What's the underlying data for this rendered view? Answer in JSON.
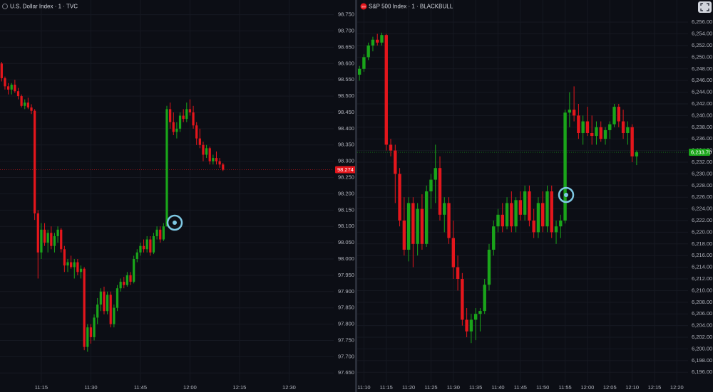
{
  "chart_data": [
    {
      "type": "candlestick",
      "title": "U.S. Dollar Index · 1 · TVC",
      "up_color": "#1aa51a",
      "down_color": "#e4161c",
      "xlim": [
        "11:03",
        "12:43"
      ],
      "xticks": [
        "11:15",
        "11:30",
        "11:45",
        "12:00",
        "12:15",
        "12:30"
      ],
      "ylim": [
        97.62,
        98.795
      ],
      "yticks": [
        {
          "value": 97.65,
          "label": "97.650"
        },
        {
          "value": 97.7,
          "label": "97.700"
        },
        {
          "value": 97.75,
          "label": "97.750"
        },
        {
          "value": 97.8,
          "label": "97.800"
        },
        {
          "value": 97.85,
          "label": "97.850"
        },
        {
          "value": 97.9,
          "label": "97.900"
        },
        {
          "value": 97.95,
          "label": "97.950"
        },
        {
          "value": 98.0,
          "label": "98.000"
        },
        {
          "value": 98.05,
          "label": "98.050"
        },
        {
          "value": 98.1,
          "label": "98.100"
        },
        {
          "value": 98.15,
          "label": "98.150"
        },
        {
          "value": 98.2,
          "label": "98.200"
        },
        {
          "value": 98.25,
          "label": "98.250"
        },
        {
          "value": 98.3,
          "label": "98.300"
        },
        {
          "value": 98.35,
          "label": "98.350"
        },
        {
          "value": 98.4,
          "label": "98.400"
        },
        {
          "value": 98.45,
          "label": "98.450"
        },
        {
          "value": 98.5,
          "label": "98.500"
        },
        {
          "value": 98.55,
          "label": "98.550"
        },
        {
          "value": 98.6,
          "label": "98.600"
        },
        {
          "value": 98.65,
          "label": "98.650"
        },
        {
          "value": 98.7,
          "label": "98.700"
        },
        {
          "value": 98.75,
          "label": "98.750"
        }
      ],
      "last_price": {
        "value": 98.274,
        "label": "98.274",
        "color": "#e4161c"
      },
      "x": [
        "11:03",
        "11:04",
        "11:05",
        "11:06",
        "11:07",
        "11:08",
        "11:09",
        "11:10",
        "11:11",
        "11:12",
        "11:13",
        "11:14",
        "11:15",
        "11:16",
        "11:17",
        "11:18",
        "11:19",
        "11:20",
        "11:21",
        "11:22",
        "11:23",
        "11:24",
        "11:25",
        "11:26",
        "11:27",
        "11:28",
        "11:29",
        "11:30",
        "11:31",
        "11:32",
        "11:33",
        "11:34",
        "11:35",
        "11:36",
        "11:37",
        "11:38",
        "11:39",
        "11:40",
        "11:41",
        "11:42",
        "11:43",
        "11:44",
        "11:45",
        "11:46",
        "11:47",
        "11:48",
        "11:49",
        "11:50",
        "11:51",
        "11:52",
        "11:53",
        "11:54",
        "11:55",
        "11:56",
        "11:57",
        "11:58",
        "11:59",
        "12:00",
        "12:01",
        "12:02",
        "12:03",
        "12:04",
        "12:05",
        "12:06",
        "12:07",
        "12:08",
        "12:09",
        "12:10"
      ],
      "ohlc": [
        [
          98.6,
          98.605,
          98.545,
          98.555
        ],
        [
          98.555,
          98.56,
          98.52,
          98.53
        ],
        [
          98.53,
          98.54,
          98.505,
          98.52
        ],
        [
          98.52,
          98.54,
          98.505,
          98.535
        ],
        [
          98.535,
          98.55,
          98.51,
          98.515
        ],
        [
          98.515,
          98.525,
          98.49,
          98.5
        ],
        [
          98.5,
          98.505,
          98.465,
          98.47
        ],
        [
          98.47,
          98.49,
          98.46,
          98.48
        ],
        [
          98.48,
          98.495,
          98.46,
          98.465
        ],
        [
          98.465,
          98.475,
          98.445,
          98.455
        ],
        [
          98.455,
          98.46,
          98.12,
          98.14
        ],
        [
          98.14,
          98.15,
          97.94,
          98.02
        ],
        [
          98.02,
          98.11,
          98.0,
          98.09
        ],
        [
          98.09,
          98.11,
          98.04,
          98.05
        ],
        [
          98.05,
          98.09,
          98.02,
          98.08
        ],
        [
          98.08,
          98.1,
          98.03,
          98.04
        ],
        [
          98.04,
          98.08,
          98.02,
          98.07
        ],
        [
          98.07,
          98.1,
          98.05,
          98.09
        ],
        [
          98.09,
          98.095,
          98.02,
          98.03
        ],
        [
          98.03,
          98.04,
          97.96,
          97.98
        ],
        [
          97.98,
          98.0,
          97.96,
          97.99
        ],
        [
          97.99,
          98.01,
          97.97,
          97.975
        ],
        [
          97.975,
          98.0,
          97.94,
          97.99
        ],
        [
          97.99,
          98.0,
          97.95,
          97.96
        ],
        [
          97.96,
          97.98,
          97.94,
          97.97
        ],
        [
          97.97,
          97.975,
          97.72,
          97.73
        ],
        [
          97.73,
          97.8,
          97.715,
          97.79
        ],
        [
          97.79,
          97.8,
          97.74,
          97.76
        ],
        [
          97.76,
          97.83,
          97.75,
          97.82
        ],
        [
          97.82,
          97.88,
          97.8,
          97.86
        ],
        [
          97.86,
          97.91,
          97.84,
          97.9
        ],
        [
          97.9,
          97.915,
          97.83,
          97.84
        ],
        [
          97.84,
          97.9,
          97.83,
          97.89
        ],
        [
          97.89,
          97.9,
          97.79,
          97.8
        ],
        [
          97.8,
          97.86,
          97.79,
          97.85
        ],
        [
          97.85,
          97.92,
          97.84,
          97.91
        ],
        [
          97.91,
          97.94,
          97.9,
          97.93
        ],
        [
          97.93,
          97.945,
          97.91,
          97.92
        ],
        [
          97.92,
          97.96,
          97.915,
          97.95
        ],
        [
          97.95,
          97.96,
          97.92,
          97.93
        ],
        [
          97.93,
          98.01,
          97.925,
          98.0
        ],
        [
          98.0,
          98.03,
          97.99,
          98.02
        ],
        [
          98.02,
          98.05,
          98.01,
          98.04
        ],
        [
          98.04,
          98.06,
          98.02,
          98.03
        ],
        [
          98.03,
          98.07,
          98.02,
          98.06
        ],
        [
          98.06,
          98.07,
          98.01,
          98.02
        ],
        [
          98.02,
          98.08,
          98.015,
          98.07
        ],
        [
          98.07,
          98.1,
          98.06,
          98.09
        ],
        [
          98.09,
          98.1,
          98.05,
          98.06
        ],
        [
          98.06,
          98.11,
          98.055,
          98.1
        ],
        [
          98.1,
          98.47,
          98.1,
          98.46
        ],
        [
          98.46,
          98.48,
          98.4,
          98.42
        ],
        [
          98.42,
          98.45,
          98.38,
          98.39
        ],
        [
          98.39,
          98.42,
          98.37,
          98.4
        ],
        [
          98.4,
          98.45,
          98.39,
          98.44
        ],
        [
          98.44,
          98.46,
          98.42,
          98.43
        ],
        [
          98.43,
          98.48,
          98.42,
          98.46
        ],
        [
          98.46,
          98.49,
          98.44,
          98.45
        ],
        [
          98.45,
          98.47,
          98.4,
          98.41
        ],
        [
          98.41,
          98.42,
          98.35,
          98.37
        ],
        [
          98.37,
          98.4,
          98.34,
          98.35
        ],
        [
          98.35,
          98.36,
          98.3,
          98.32
        ],
        [
          98.32,
          98.35,
          98.31,
          98.34
        ],
        [
          98.34,
          98.345,
          98.29,
          98.3
        ],
        [
          98.3,
          98.32,
          98.29,
          98.31
        ],
        [
          98.31,
          98.33,
          98.29,
          98.3
        ],
        [
          98.3,
          98.31,
          98.28,
          98.29
        ],
        [
          98.29,
          98.295,
          98.27,
          98.274
        ]
      ]
    },
    {
      "type": "candlestick",
      "title": "S&P 500 Index · 1 · BLACKBULL",
      "badge": "500",
      "up_color": "#1aa51a",
      "down_color": "#e4161c",
      "xlim": [
        "11:09",
        "12:22"
      ],
      "xticks": [
        "11:10",
        "11:15",
        "11:20",
        "11:25",
        "11:30",
        "11:35",
        "11:40",
        "11:45",
        "11:50",
        "11:55",
        "12:00",
        "12:05",
        "12:10",
        "12:15",
        "12:20"
      ],
      "ylim": [
        6194.2,
        6259.8
      ],
      "yticks": [
        {
          "value": 6196,
          "label": "6,196.00"
        },
        {
          "value": 6198,
          "label": "6,198.00"
        },
        {
          "value": 6200,
          "label": "6,200.00"
        },
        {
          "value": 6202,
          "label": "6,202.00"
        },
        {
          "value": 6204,
          "label": "6,204.00"
        },
        {
          "value": 6206,
          "label": "6,206.00"
        },
        {
          "value": 6208,
          "label": "6,208.00"
        },
        {
          "value": 6210,
          "label": "6,210.00"
        },
        {
          "value": 6212,
          "label": "6,212.00"
        },
        {
          "value": 6214,
          "label": "6,214.00"
        },
        {
          "value": 6216,
          "label": "6,216.00"
        },
        {
          "value": 6218,
          "label": "6,218.00"
        },
        {
          "value": 6220,
          "label": "6,220.00"
        },
        {
          "value": 6222,
          "label": "6,222.00"
        },
        {
          "value": 6224,
          "label": "6,224.00"
        },
        {
          "value": 6226,
          "label": "6,226.00"
        },
        {
          "value": 6228,
          "label": "6,228.00"
        },
        {
          "value": 6230,
          "label": "6,230.00"
        },
        {
          "value": 6232,
          "label": "6,232.00"
        },
        {
          "value": 6234,
          "label": "6,234.00"
        },
        {
          "value": 6236,
          "label": "6,236.00"
        },
        {
          "value": 6238,
          "label": "6,238.00"
        },
        {
          "value": 6240,
          "label": "6,240.00"
        },
        {
          "value": 6242,
          "label": "6,242.00"
        },
        {
          "value": 6244,
          "label": "6,244.00"
        },
        {
          "value": 6246,
          "label": "6,246.00"
        },
        {
          "value": 6248,
          "label": "6,248.00"
        },
        {
          "value": 6250,
          "label": "6,250.00"
        },
        {
          "value": 6252,
          "label": "6,252.00"
        },
        {
          "value": 6254,
          "label": "6,254.00"
        },
        {
          "value": 6256,
          "label": "6,256.00"
        }
      ],
      "last_price": {
        "value": 6233.7,
        "label": "6,233.70",
        "color": "#1aa51a"
      },
      "x": [
        "11:09",
        "11:10",
        "11:11",
        "11:12",
        "11:13",
        "11:14",
        "11:15",
        "11:16",
        "11:17",
        "11:18",
        "11:19",
        "11:20",
        "11:21",
        "11:22",
        "11:23",
        "11:24",
        "11:25",
        "11:26",
        "11:27",
        "11:28",
        "11:29",
        "11:30",
        "11:31",
        "11:32",
        "11:33",
        "11:34",
        "11:35",
        "11:36",
        "11:37",
        "11:38",
        "11:39",
        "11:40",
        "11:41",
        "11:42",
        "11:43",
        "11:44",
        "11:45",
        "11:46",
        "11:47",
        "11:48",
        "11:49",
        "11:50",
        "11:51",
        "11:52",
        "11:53",
        "11:54",
        "11:55",
        "11:56",
        "11:57",
        "11:58",
        "11:59",
        "12:00",
        "12:01",
        "12:02",
        "12:03",
        "12:04",
        "12:05",
        "12:06",
        "12:07",
        "12:08",
        "12:09",
        "12:10",
        "12:11"
      ],
      "ohlc": [
        [
          6247.0,
          6248.5,
          6246.0,
          6248.0
        ],
        [
          6248.0,
          6250.5,
          6247.5,
          6250.0
        ],
        [
          6250.0,
          6252.5,
          6249.5,
          6252.0
        ],
        [
          6252.0,
          6253.5,
          6251.0,
          6253.0
        ],
        [
          6253.0,
          6254.0,
          6252.0,
          6252.5
        ],
        [
          6252.5,
          6254.2,
          6252.0,
          6253.8
        ],
        [
          6253.8,
          6254.0,
          6234.0,
          6235.0
        ],
        [
          6235.0,
          6236.0,
          6233.0,
          6234.0
        ],
        [
          6234.0,
          6235.0,
          6225.0,
          6230.0
        ],
        [
          6230.0,
          6231.0,
          6221.0,
          6222.0
        ],
        [
          6222.0,
          6226.0,
          6216.0,
          6217.0
        ],
        [
          6217.0,
          6226.0,
          6215.0,
          6225.0
        ],
        [
          6225.0,
          6226.0,
          6214.0,
          6218.0
        ],
        [
          6218.0,
          6225.0,
          6216.0,
          6224.0
        ],
        [
          6224.0,
          6226.5,
          6217.0,
          6218.0
        ],
        [
          6218.0,
          6228.0,
          6217.5,
          6227.0
        ],
        [
          6227.0,
          6230.0,
          6224.0,
          6229.0
        ],
        [
          6229.0,
          6235.0,
          6225.0,
          6231.0
        ],
        [
          6231.0,
          6233.0,
          6222.0,
          6223.0
        ],
        [
          6223.0,
          6226.0,
          6220.0,
          6225.0
        ],
        [
          6225.0,
          6226.0,
          6218.0,
          6219.0
        ],
        [
          6219.0,
          6222.0,
          6212.0,
          6214.0
        ],
        [
          6214.0,
          6216.0,
          6210.0,
          6212.0
        ],
        [
          6212.0,
          6213.0,
          6204.0,
          6205.0
        ],
        [
          6205.0,
          6207.0,
          6202.0,
          6203.0
        ],
        [
          6203.0,
          6206.0,
          6201.0,
          6205.0
        ],
        [
          6205.0,
          6207.0,
          6201.5,
          6206.0
        ],
        [
          6206.0,
          6207.0,
          6203.0,
          6206.5
        ],
        [
          6206.5,
          6212.0,
          6206.0,
          6211.0
        ],
        [
          6211.0,
          6218.0,
          6210.0,
          6217.0
        ],
        [
          6217.0,
          6222.0,
          6216.0,
          6221.0
        ],
        [
          6221.0,
          6224.0,
          6220.0,
          6223.0
        ],
        [
          6223.0,
          6225.0,
          6220.0,
          6221.0
        ],
        [
          6221.0,
          6226.0,
          6220.5,
          6225.0
        ],
        [
          6225.0,
          6227.0,
          6220.0,
          6221.0
        ],
        [
          6221.0,
          6226.0,
          6220.0,
          6225.5
        ],
        [
          6225.5,
          6227.0,
          6222.0,
          6223.0
        ],
        [
          6223.0,
          6228.0,
          6222.0,
          6227.0
        ],
        [
          6227.0,
          6228.0,
          6221.0,
          6222.0
        ],
        [
          6222.0,
          6224.0,
          6219.0,
          6220.0
        ],
        [
          6220.0,
          6226.0,
          6219.0,
          6225.0
        ],
        [
          6225.0,
          6227.0,
          6220.0,
          6221.0
        ],
        [
          6221.0,
          6228.0,
          6220.0,
          6227.0
        ],
        [
          6227.0,
          6228.0,
          6219.0,
          6220.0
        ],
        [
          6220.0,
          6222.0,
          6218.0,
          6221.0
        ],
        [
          6221.0,
          6223.0,
          6219.0,
          6222.0
        ],
        [
          6222.0,
          6241.0,
          6221.5,
          6240.5
        ],
        [
          6240.5,
          6244.0,
          6238.0,
          6241.0
        ],
        [
          6241.0,
          6245.0,
          6239.0,
          6240.0
        ],
        [
          6240.0,
          6242.0,
          6236.0,
          6237.0
        ],
        [
          6237.0,
          6240.0,
          6235.0,
          6239.0
        ],
        [
          6239.0,
          6241.5,
          6236.5,
          6237.0
        ],
        [
          6237.0,
          6240.0,
          6235.0,
          6236.5
        ],
        [
          6236.5,
          6239.0,
          6235.0,
          6238.0
        ],
        [
          6238.0,
          6239.0,
          6235.5,
          6236.0
        ],
        [
          6236.0,
          6238.0,
          6235.0,
          6237.5
        ],
        [
          6237.5,
          6239.0,
          6236.0,
          6238.5
        ],
        [
          6238.5,
          6242.0,
          6238.0,
          6241.5
        ],
        [
          6241.5,
          6242.0,
          6238.0,
          6239.0
        ],
        [
          6239.0,
          6241.0,
          6236.0,
          6237.0
        ],
        [
          6237.0,
          6239.0,
          6235.0,
          6238.0
        ],
        [
          6238.0,
          6238.5,
          6232.0,
          6233.0
        ],
        [
          6233.0,
          6234.0,
          6231.5,
          6233.7
        ]
      ]
    }
  ]
}
